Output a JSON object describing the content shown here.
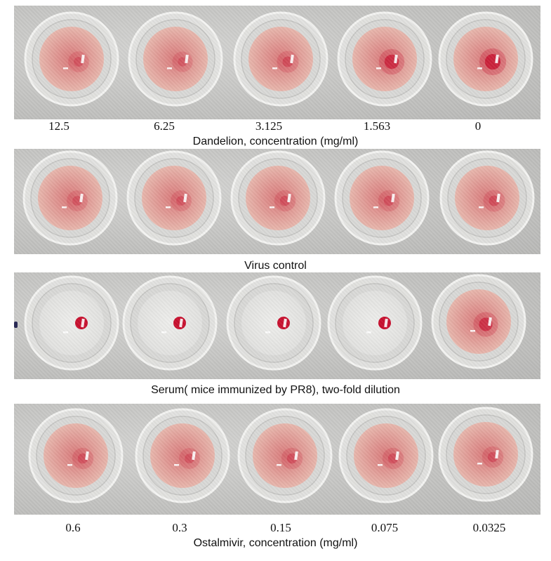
{
  "panels": [
    {
      "id": "dandelion",
      "caption": "Dandelion, concentration (mg/ml)",
      "labels": [
        "12.5",
        "6.25",
        "3.125",
        "1.563",
        "0"
      ],
      "wells": [
        {
          "pattern": "diffuse",
          "dot": 0.15
        },
        {
          "pattern": "diffuse",
          "dot": 0.1
        },
        {
          "pattern": "diffuse",
          "dot": 0.25
        },
        {
          "pattern": "button",
          "dot": 0.7
        },
        {
          "pattern": "button",
          "dot": 0.85
        }
      ]
    },
    {
      "id": "virus-control",
      "caption": "Virus control",
      "labels": [],
      "wells": [
        {
          "pattern": "diffuse",
          "dot": 0.15
        },
        {
          "pattern": "diffuse",
          "dot": 0.15
        },
        {
          "pattern": "diffuse",
          "dot": 0.2
        },
        {
          "pattern": "diffuse",
          "dot": 0.2
        },
        {
          "pattern": "diffuse",
          "dot": 0.25
        }
      ]
    },
    {
      "id": "serum",
      "caption": "Serum( mice immunized by PR8), two-fold dilution",
      "labels": [],
      "wells": [
        {
          "pattern": "clear-button",
          "dot": 1.0
        },
        {
          "pattern": "clear-button",
          "dot": 1.0
        },
        {
          "pattern": "clear-button",
          "dot": 1.0
        },
        {
          "pattern": "clear-button",
          "dot": 1.0
        },
        {
          "pattern": "diffuse",
          "dot": 0.6
        }
      ]
    },
    {
      "id": "ostalmivir",
      "caption": "Ostalmivir, concentration (mg/ml)",
      "labels": [
        "0.6",
        "0.3",
        "0.15",
        "0.075",
        "0.0325"
      ],
      "wells": [
        {
          "pattern": "diffuse",
          "dot": 0.2
        },
        {
          "pattern": "diffuse",
          "dot": 0.15
        },
        {
          "pattern": "diffuse",
          "dot": 0.2
        },
        {
          "pattern": "diffuse",
          "dot": 0.2
        },
        {
          "pattern": "diffuse",
          "dot": 0.2
        }
      ]
    }
  ],
  "colors": {
    "blood": "#c8102e",
    "diffuse_center": "#d9797a",
    "diffuse_edge": "#e8b7ad",
    "clear_well": "#eeeeec"
  }
}
